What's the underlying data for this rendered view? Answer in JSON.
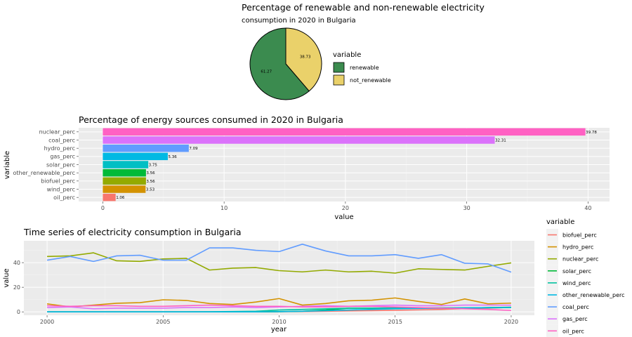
{
  "chart_data": [
    {
      "type": "pie",
      "title": "Percentage of renewable and non-renewable electricity",
      "subtitle": "consumption in 2020 in Bulgaria",
      "legend_title": "variable",
      "legend_position": "right",
      "slices": [
        {
          "name": "renewable",
          "value": 61.27,
          "label": "61.27",
          "color": "#3b8b4f"
        },
        {
          "name": "not_renewable",
          "value": 38.73,
          "label": "38.73",
          "color": "#ead16a"
        }
      ]
    },
    {
      "type": "bar",
      "orientation": "horizontal",
      "title": "Percentage of energy sources consumed in 2020 in Bulgaria",
      "xlabel": "value",
      "ylabel": "variable",
      "xlim": [
        -1.99,
        41.77
      ],
      "xticks": [
        0,
        10,
        20,
        30,
        40
      ],
      "grid": true,
      "categories": [
        "nuclear_perc",
        "coal_perc",
        "hydro_perc",
        "gas_perc",
        "solar_perc",
        "other_renewable_perc",
        "biofuel_perc",
        "wind_perc",
        "oil_perc"
      ],
      "values": [
        39.78,
        32.31,
        7.09,
        5.36,
        3.75,
        3.56,
        3.56,
        3.53,
        1.06
      ],
      "labels": [
        "39.78",
        "32.31",
        "7.09",
        "5.36",
        "3.75",
        "3.56",
        "3.56",
        "3.53",
        "1.06"
      ],
      "colors": [
        "#ff61c3",
        "#db72fb",
        "#619cff",
        "#00b9e3",
        "#00bfc4",
        "#00ba38",
        "#93aa00",
        "#d39200",
        "#f8766d"
      ]
    },
    {
      "type": "line",
      "title": "Time series of electricity consumption in Bulgaria",
      "xlabel": "year",
      "ylabel": "value",
      "xlim": [
        1999,
        2021
      ],
      "ylim": [
        -2.75,
        57.75
      ],
      "xticks": [
        2000,
        2005,
        2010,
        2015,
        2020
      ],
      "yticks": [
        0,
        20,
        40
      ],
      "grid": true,
      "legend_title": "variable",
      "legend_position": "right",
      "x": [
        2000,
        2001,
        2002,
        2003,
        2004,
        2005,
        2006,
        2007,
        2008,
        2009,
        2010,
        2011,
        2012,
        2013,
        2014,
        2015,
        2016,
        2017,
        2018,
        2019,
        2020
      ],
      "series": [
        {
          "name": "biofuel_perc",
          "color": "#f8766d",
          "values": [
            0,
            0,
            0,
            0,
            0,
            0,
            0,
            0,
            0,
            0,
            0.1,
            0.3,
            0.5,
            0.8,
            1.0,
            1.3,
            1.6,
            2.0,
            2.6,
            3.0,
            3.6
          ]
        },
        {
          "name": "hydro_perc",
          "color": "#d39200",
          "values": [
            6.5,
            4.0,
            5.5,
            7.0,
            7.5,
            9.8,
            9.3,
            6.8,
            6.0,
            8.0,
            10.8,
            5.5,
            6.8,
            9.0,
            9.5,
            11.3,
            8.5,
            6.0,
            10.5,
            6.5,
            7.1
          ]
        },
        {
          "name": "nuclear_perc",
          "color": "#93aa00",
          "values": [
            45.0,
            45.5,
            48.0,
            41.5,
            41.0,
            43.0,
            43.5,
            34.0,
            35.5,
            36.0,
            33.5,
            32.5,
            34.0,
            32.5,
            33.0,
            31.5,
            35.0,
            34.5,
            34.0,
            37.0,
            39.8
          ]
        },
        {
          "name": "solar_perc",
          "color": "#00ba38",
          "values": [
            0,
            0,
            0,
            0,
            0,
            0,
            0,
            0,
            0,
            0,
            0.1,
            0.5,
            1.5,
            3.0,
            3.0,
            3.0,
            3.0,
            3.0,
            3.0,
            3.5,
            3.8
          ]
        },
        {
          "name": "wind_perc",
          "color": "#00c19f",
          "values": [
            0,
            0,
            0,
            0,
            0,
            0,
            0,
            0.1,
            0.3,
            0.5,
            1.5,
            2.0,
            2.5,
            3.0,
            3.0,
            3.3,
            3.3,
            3.3,
            3.3,
            3.3,
            3.5
          ]
        },
        {
          "name": "other_renewable_perc",
          "color": "#00b9e3",
          "values": [
            0,
            0,
            0,
            0,
            0,
            0,
            0,
            0,
            0,
            0,
            0.2,
            0.5,
            1.0,
            1.5,
            2.0,
            2.5,
            2.8,
            3.0,
            3.2,
            3.4,
            3.6
          ]
        },
        {
          "name": "coal_perc",
          "color": "#619cff",
          "values": [
            42.0,
            45.0,
            41.0,
            45.5,
            46.0,
            42.0,
            42.0,
            52.0,
            52.0,
            50.0,
            49.0,
            55.0,
            49.5,
            45.5,
            45.5,
            46.5,
            43.5,
            46.5,
            39.5,
            39.0,
            32.3
          ]
        },
        {
          "name": "gas_perc",
          "color": "#db72fb",
          "values": [
            3.5,
            4.0,
            2.5,
            3.0,
            3.0,
            3.0,
            3.5,
            3.5,
            4.0,
            3.5,
            4.0,
            4.5,
            5.0,
            4.5,
            5.0,
            5.5,
            5.0,
            5.0,
            5.5,
            5.5,
            5.4
          ]
        },
        {
          "name": "oil_perc",
          "color": "#ff61c3",
          "values": [
            5.0,
            4.5,
            5.0,
            5.0,
            4.5,
            4.5,
            5.0,
            5.5,
            5.0,
            4.5,
            4.5,
            4.0,
            4.0,
            4.5,
            4.5,
            4.0,
            3.5,
            3.0,
            2.5,
            2.0,
            1.1
          ]
        }
      ]
    }
  ]
}
